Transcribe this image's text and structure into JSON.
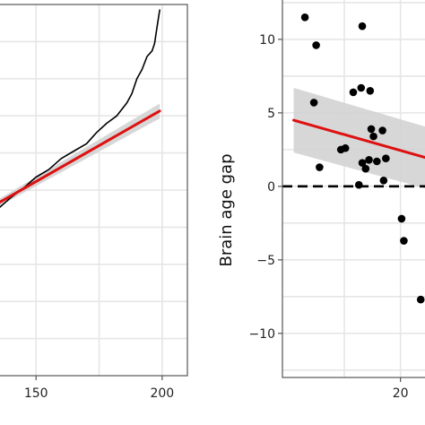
{
  "chart_data": [
    {
      "type": "line",
      "title": "",
      "xlabel": "",
      "ylabel": "",
      "xlim": [
        135,
        210
      ],
      "ylim": [
        0,
        1
      ],
      "grid": true,
      "x_ticks": [
        150,
        200
      ],
      "x_tick_labels": [
        "150",
        "200"
      ],
      "series": [
        {
          "kind": "line",
          "color": "#000000",
          "points": [
            [
              135,
              0.45
            ],
            [
              140,
              0.48
            ],
            [
              145,
              0.505
            ],
            [
              150,
              0.535
            ],
            [
              155,
              0.555
            ],
            [
              160,
              0.585
            ],
            [
              165,
              0.605
            ],
            [
              170,
              0.625
            ],
            [
              174,
              0.655
            ],
            [
              178,
              0.68
            ],
            [
              182,
              0.7
            ],
            [
              186,
              0.735
            ],
            [
              188,
              0.76
            ],
            [
              190,
              0.8
            ],
            [
              192,
              0.825
            ],
            [
              194,
              0.86
            ],
            [
              196,
              0.875
            ],
            [
              197,
              0.895
            ],
            [
              198,
              0.94
            ],
            [
              199,
              0.985
            ]
          ]
        },
        {
          "kind": "fit",
          "color": "#dd1111",
          "points": [
            [
              135,
              0.465
            ],
            [
              199,
              0.713
            ]
          ]
        }
      ],
      "confidence_band": {
        "color": "#d3d3d3",
        "upper": [
          [
            135,
            0.475
          ],
          [
            199,
            0.733
          ]
        ],
        "lower": [
          [
            135,
            0.455
          ],
          [
            199,
            0.693
          ]
        ]
      }
    },
    {
      "type": "scatter",
      "title": "",
      "xlabel": "",
      "ylabel": "Brain age gap",
      "xlim": [
        9.5,
        22.5
      ],
      "ylim": [
        -13,
        12.8
      ],
      "grid": true,
      "x_ticks": [
        20
      ],
      "x_tick_labels": [
        "20"
      ],
      "y_ticks": [
        10,
        5,
        0,
        -5,
        -10
      ],
      "y_tick_labels": [
        "10",
        "5",
        "0",
        "−5",
        "−10"
      ],
      "reference_line": {
        "y": 0,
        "style": "dashed",
        "color": "#000000"
      },
      "points": [
        {
          "x": 11.5,
          "y": 11.5
        },
        {
          "x": 12.5,
          "y": 9.6
        },
        {
          "x": 12.3,
          "y": 5.7
        },
        {
          "x": 12.8,
          "y": 1.3
        },
        {
          "x": 15.8,
          "y": 6.4
        },
        {
          "x": 16.5,
          "y": 6.7
        },
        {
          "x": 17.3,
          "y": 6.5
        },
        {
          "x": 16.6,
          "y": 10.9
        },
        {
          "x": 14.7,
          "y": 2.5
        },
        {
          "x": 15.1,
          "y": 2.6
        },
        {
          "x": 17.4,
          "y": 3.9
        },
        {
          "x": 17.6,
          "y": 3.4
        },
        {
          "x": 16.6,
          "y": 1.6
        },
        {
          "x": 16.9,
          "y": 1.2
        },
        {
          "x": 17.2,
          "y": 1.8
        },
        {
          "x": 17.9,
          "y": 1.7
        },
        {
          "x": 18.4,
          "y": 3.8
        },
        {
          "x": 18.7,
          "y": 1.9
        },
        {
          "x": 16.3,
          "y": 0.1
        },
        {
          "x": 18.5,
          "y": 0.4
        },
        {
          "x": 20.1,
          "y": -2.2
        },
        {
          "x": 20.3,
          "y": -3.7
        },
        {
          "x": 21.8,
          "y": -7.7
        }
      ],
      "point_color": "#000000",
      "fit": {
        "color": "#dd1111",
        "points": [
          [
            10.5,
            4.5
          ],
          [
            22.5,
            1.9
          ]
        ]
      },
      "confidence_band": {
        "color": "#d3d3d3",
        "upper": [
          [
            10.5,
            6.7
          ],
          [
            22.5,
            4.0
          ]
        ],
        "lower": [
          [
            10.5,
            2.3
          ],
          [
            22.5,
            -0.2
          ]
        ]
      }
    }
  ]
}
